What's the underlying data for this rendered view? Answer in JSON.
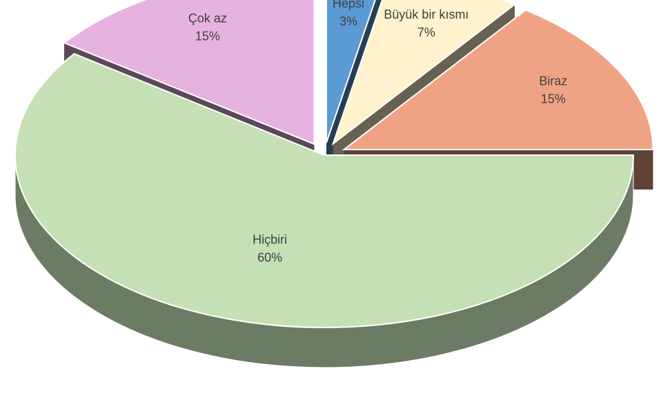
{
  "chart_data": {
    "type": "pie",
    "categories": [
      "Hepsi",
      "Büyük bir kısmı",
      "Biraz",
      "Hiçbiri",
      "Çok az"
    ],
    "values": [
      3,
      7,
      15,
      60,
      15
    ],
    "value_labels": [
      "3%",
      "7%",
      "15%",
      "60%",
      "15%"
    ],
    "colors": [
      "#5b9bd5",
      "#fff2cc",
      "#f0a384",
      "#c5e0b4",
      "#e6b3e0"
    ]
  }
}
